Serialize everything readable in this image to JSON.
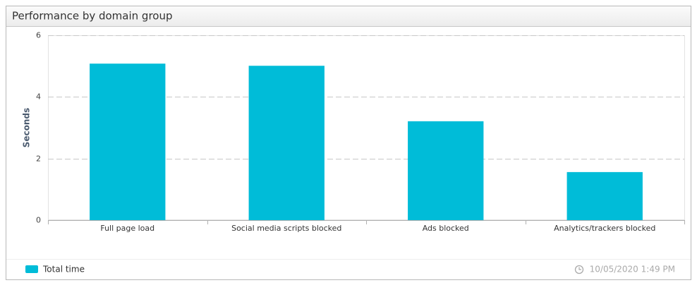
{
  "chart_data": {
    "type": "bar",
    "title": "Performance by domain group",
    "y_label": "Seconds",
    "categories": [
      "Full page load",
      "Social media scripts blocked",
      "Ads blocked",
      "Analytics/trackers blocked"
    ],
    "series": [
      {
        "name": "Total time",
        "color": "#00bcd8",
        "values": [
          5.08,
          5.01,
          3.21,
          1.56
        ]
      }
    ],
    "ylim": [
      0,
      6
    ],
    "yticks": [
      0,
      2,
      4,
      6
    ],
    "grid": true
  },
  "footer": {
    "timestamp": "10/05/2020 1:49 PM"
  }
}
